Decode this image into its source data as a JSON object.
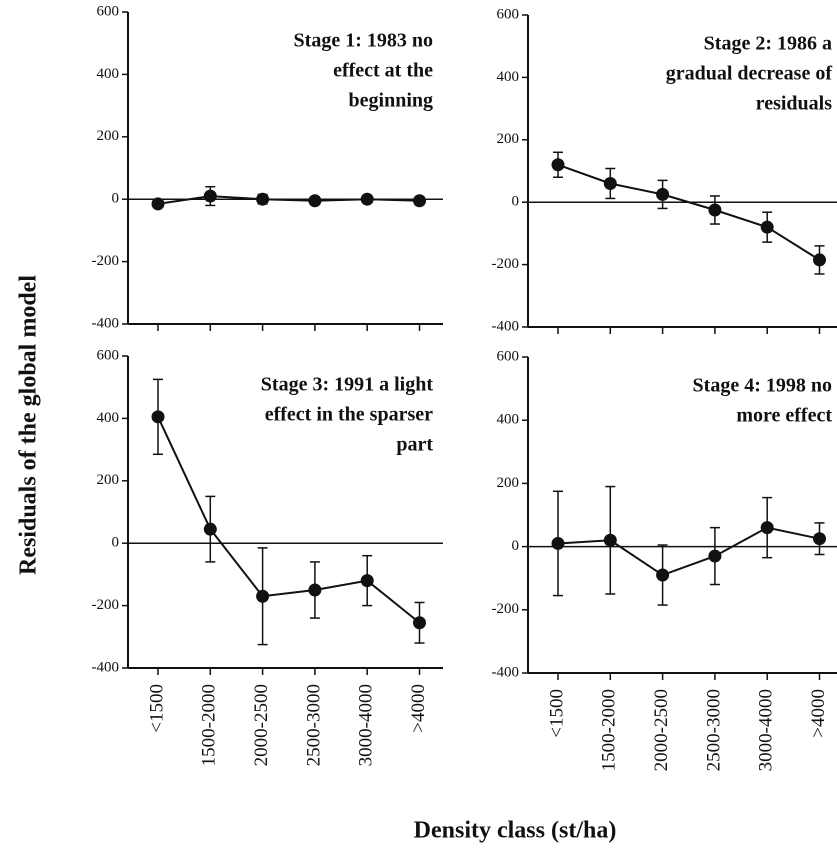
{
  "chart_data": [
    {
      "type": "line",
      "title": [
        "Stage 1: 1983 no",
        "effect at the",
        "beginning"
      ],
      "values": [
        -15,
        10,
        0,
        -5,
        0,
        -5
      ],
      "errors": [
        10,
        30,
        15,
        10,
        8,
        12
      ],
      "color": "#111111",
      "ylim": [
        -400,
        600
      ],
      "yticks": [
        -400,
        -200,
        0,
        200,
        400,
        600
      ]
    },
    {
      "type": "line",
      "title": [
        "Stage 2: 1986 a",
        "gradual decrease of",
        "residuals"
      ],
      "values": [
        120,
        60,
        25,
        -25,
        -80,
        -185
      ],
      "errors": [
        40,
        48,
        45,
        45,
        48,
        45
      ],
      "color": "#111111",
      "ylim": [
        -400,
        600
      ],
      "yticks": [
        -400,
        -200,
        0,
        200,
        400,
        600
      ]
    },
    {
      "type": "line",
      "title": [
        "Stage 3: 1991 a light",
        "effect in the sparser",
        "part"
      ],
      "values": [
        405,
        45,
        -170,
        -150,
        -120,
        -255
      ],
      "errors": [
        120,
        105,
        155,
        90,
        80,
        65
      ],
      "color": "#111111",
      "ylim": [
        -400,
        600
      ],
      "yticks": [
        -400,
        -200,
        0,
        200,
        400,
        600
      ]
    },
    {
      "type": "line",
      "title": [
        "Stage 4: 1998 no",
        "more effect"
      ],
      "values": [
        10,
        20,
        -90,
        -30,
        60,
        25
      ],
      "errors": [
        165,
        170,
        95,
        90,
        95,
        50
      ],
      "color": "#111111",
      "ylim": [
        -400,
        600
      ],
      "yticks": [
        -400,
        -200,
        0,
        200,
        400,
        600
      ]
    }
  ],
  "categories": [
    "<1500",
    "1500-2000",
    "2000-2500",
    "2500-3000",
    "3000-4000",
    ">4000"
  ],
  "xlabel": "Density class (st/ha)",
  "ylabel": "Residuals of the global model"
}
